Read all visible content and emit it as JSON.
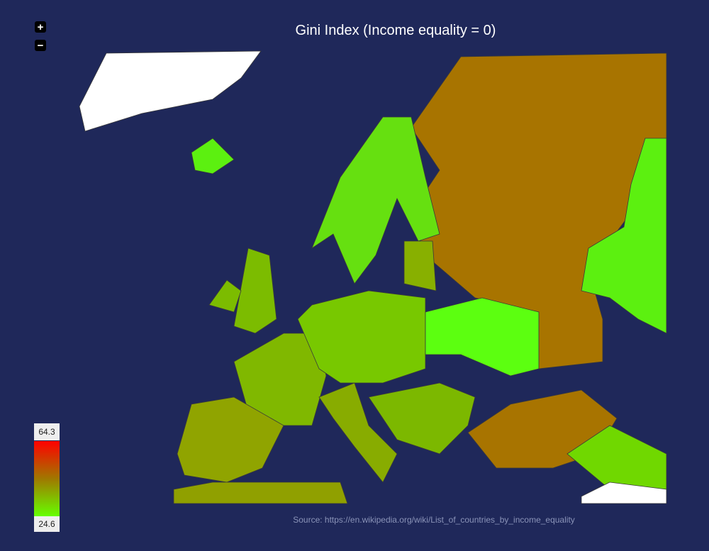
{
  "title": "Gini Index (Income equality = 0)",
  "source": "Source: https://en.wikipedia.org/wiki/List_of_countries_by_income_equality",
  "zoom": {
    "in": "+",
    "out": "−"
  },
  "legend": {
    "max": 64.3,
    "min": 24.6,
    "colors": [
      "#ff0000",
      "#a07800",
      "#66ff00"
    ]
  }
}
